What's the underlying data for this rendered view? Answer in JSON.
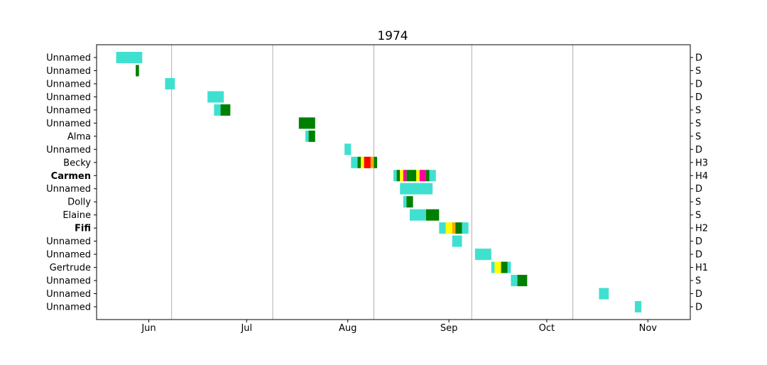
{
  "chart_data": {
    "type": "timeline",
    "title": "1974",
    "x_axis": {
      "range": [
        "1974-05-30",
        "1974-11-28"
      ],
      "tick_labels": [
        {
          "label": "Jun",
          "date": "1974-06-15"
        },
        {
          "label": "Jul",
          "date": "1974-07-15"
        },
        {
          "label": "Aug",
          "date": "1974-08-15"
        },
        {
          "label": "Sep",
          "date": "1974-09-15"
        },
        {
          "label": "Oct",
          "date": "1974-10-15"
        },
        {
          "label": "Nov",
          "date": "1974-11-15"
        }
      ],
      "gridlines": [
        "1974-06-22",
        "1974-07-23",
        "1974-08-23",
        "1974-09-22",
        "1974-10-23"
      ]
    },
    "grid": true,
    "colors": {
      "turquoise": "#40e0d0",
      "green": "#008000",
      "yellow": "#ffff00",
      "orange": "#ffa500",
      "red": "#ff0000",
      "magenta": "#ff00a0",
      "darkred": "#8b0000",
      "black": "#000000"
    },
    "storms": [
      {
        "name": "Unnamed",
        "bold": false,
        "category": "D",
        "segments": [
          {
            "start": "1974-06-052",
            "end": "1974-06-13",
            "color": "turquoise"
          }
        ]
      },
      {
        "name": "Unnamed",
        "bold": false,
        "category": "S",
        "segments": [
          {
            "start": "1974-06-11",
            "end": "1974-06-12",
            "color": "green"
          }
        ]
      },
      {
        "name": "Unnamed",
        "bold": false,
        "category": "D",
        "segments": [
          {
            "start": "1974-06-20",
            "end": "1974-06-23",
            "color": "turquoise"
          }
        ]
      },
      {
        "name": "Unnamed",
        "bold": false,
        "category": "D",
        "segments": [
          {
            "start": "1974-07-03",
            "end": "1974-07-08",
            "color": "turquoise"
          }
        ]
      },
      {
        "name": "Unnamed",
        "bold": false,
        "category": "S",
        "segments": [
          {
            "start": "1974-07-05",
            "end": "1974-07-07",
            "color": "turquoise"
          },
          {
            "start": "1974-07-07",
            "end": "1974-07-10",
            "color": "green"
          }
        ]
      },
      {
        "name": "Unnamed",
        "bold": false,
        "category": "S",
        "segments": [
          {
            "start": "1974-07-31",
            "end": "1974-08-05",
            "color": "green"
          }
        ]
      },
      {
        "name": "Alma",
        "bold": false,
        "category": "S",
        "segments": [
          {
            "start": "1974-08-02",
            "end": "1974-08-03",
            "color": "turquoise"
          },
          {
            "start": "1974-08-03",
            "end": "1974-08-05",
            "color": "green"
          }
        ]
      },
      {
        "name": "Unnamed",
        "bold": false,
        "category": "D",
        "segments": [
          {
            "start": "1974-08-14",
            "end": "1974-08-16",
            "color": "turquoise"
          }
        ]
      },
      {
        "name": "Becky",
        "bold": false,
        "category": "H3",
        "segments": [
          {
            "start": "1974-08-16",
            "end": "1974-08-18",
            "color": "turquoise"
          },
          {
            "start": "1974-08-18",
            "end": "1974-08-19",
            "color": "green"
          },
          {
            "start": "1974-08-19",
            "end": "1974-08-20",
            "color": "yellow"
          },
          {
            "start": "1974-08-20",
            "end": "1974-08-22",
            "color": "orange"
          },
          {
            "start": "1974-08-20",
            "end": "1974-08-22",
            "color": "red"
          },
          {
            "start": "1974-08-22",
            "end": "1974-08-23",
            "color": "orange"
          },
          {
            "start": "1974-08-23",
            "end": "1974-08-24",
            "color": "green"
          }
        ]
      },
      {
        "name": "Carmen",
        "bold": true,
        "category": "H4",
        "segments": [
          {
            "start": "1974-08-29",
            "end": "1974-08-30",
            "color": "turquoise"
          },
          {
            "start": "1974-08-30",
            "end": "1974-08-31",
            "color": "green"
          },
          {
            "start": "1974-08-31",
            "end": "1974-09-01",
            "color": "yellow"
          },
          {
            "start": "1974-09-01",
            "end": "1974-09-02",
            "color": "magenta"
          },
          {
            "start": "1974-09-02",
            "end": "1974-09-05",
            "color": "green"
          },
          {
            "start": "1974-09-05",
            "end": "1974-09-06",
            "color": "yellow"
          },
          {
            "start": "1974-09-06",
            "end": "1974-09-08",
            "color": "magenta"
          },
          {
            "start": "1974-09-08",
            "end": "1974-09-09",
            "color": "green"
          },
          {
            "start": "1974-09-09",
            "end": "1974-09-11",
            "color": "turquoise"
          }
        ]
      },
      {
        "name": "Unnamed",
        "bold": false,
        "category": "D",
        "segments": [
          {
            "start": "1974-08-31",
            "end": "1974-09-10",
            "color": "turquoise"
          }
        ]
      },
      {
        "name": "Dolly",
        "bold": false,
        "category": "S",
        "segments": [
          {
            "start": "1974-09-01",
            "end": "1974-09-02",
            "color": "turquoise"
          },
          {
            "start": "1974-09-02",
            "end": "1974-09-04",
            "color": "green"
          }
        ]
      },
      {
        "name": "Elaine",
        "bold": false,
        "category": "S",
        "segments": [
          {
            "start": "1974-09-03",
            "end": "1974-09-08",
            "color": "turquoise"
          },
          {
            "start": "1974-09-08",
            "end": "1974-09-12",
            "color": "green"
          }
        ]
      },
      {
        "name": "Fifi",
        "bold": true,
        "category": "H2",
        "segments": [
          {
            "start": "1974-09-12",
            "end": "1974-09-14",
            "color": "turquoise"
          },
          {
            "start": "1974-09-14",
            "end": "1974-09-16",
            "color": "yellow"
          },
          {
            "start": "1974-09-16",
            "end": "1974-09-17",
            "color": "orange"
          },
          {
            "start": "1974-09-17",
            "end": "1974-09-19",
            "color": "green"
          },
          {
            "start": "1974-09-19",
            "end": "1974-09-21",
            "color": "turquoise"
          }
        ]
      },
      {
        "name": "Unnamed",
        "bold": false,
        "category": "D",
        "segments": [
          {
            "start": "1974-09-16",
            "end": "1974-09-19",
            "color": "turquoise"
          }
        ]
      },
      {
        "name": "Unnamed",
        "bold": false,
        "category": "D",
        "segments": [
          {
            "start": "1974-09-23",
            "end": "1974-09-28",
            "color": "turquoise"
          }
        ]
      },
      {
        "name": "Gertrude",
        "bold": false,
        "category": "H1",
        "segments": [
          {
            "start": "1974-09-28",
            "end": "1974-09-29",
            "color": "turquoise"
          },
          {
            "start": "1974-09-29",
            "end": "1974-10-01",
            "color": "yellow"
          },
          {
            "start": "1974-10-01",
            "end": "1974-10-03",
            "color": "green"
          },
          {
            "start": "1974-10-03",
            "end": "1974-10-04",
            "color": "turquoise"
          }
        ]
      },
      {
        "name": "Unnamed",
        "bold": false,
        "category": "S",
        "segments": [
          {
            "start": "1974-10-04",
            "end": "1974-10-06",
            "color": "turquoise"
          },
          {
            "start": "1974-10-06",
            "end": "1974-10-09",
            "color": "green"
          }
        ]
      },
      {
        "name": "Unnamed",
        "bold": false,
        "category": "D",
        "segments": [
          {
            "start": "1974-10-31",
            "end": "1974-11-03",
            "color": "turquoise"
          }
        ]
      },
      {
        "name": "Unnamed",
        "bold": false,
        "category": "D",
        "segments": [
          {
            "start": "1974-11-11",
            "end": "1974-11-13",
            "color": "turquoise"
          }
        ]
      }
    ]
  }
}
